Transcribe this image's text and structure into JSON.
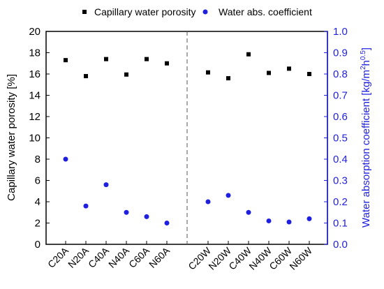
{
  "colors": {
    "left_axis": "#000000",
    "right_axis": "#1f1fe0",
    "series1_marker": "#000000",
    "series2_marker": "#1f1fe0"
  },
  "legend": {
    "placement": "top",
    "items": [
      {
        "label": "Capillary water porosity",
        "marker": "square",
        "color": "#000000"
      },
      {
        "label": "Water abs. coefficient",
        "marker": "circle",
        "color": "#1f1fe0"
      }
    ]
  },
  "chart_data": {
    "type": "scatter",
    "categories": [
      "C20A",
      "N20A",
      "C40A",
      "N40A",
      "C60A",
      "N60A",
      "C20W",
      "N20W",
      "C40W",
      "N40W",
      "C60W",
      "N60W"
    ],
    "divider_after_index": 5,
    "yaxis_left": {
      "label": "Capillary water porosity [%]",
      "range": [
        0,
        20
      ],
      "ticks": [
        "0",
        "2",
        "4",
        "6",
        "8",
        "10",
        "12",
        "14",
        "16",
        "18",
        "20"
      ]
    },
    "yaxis_right": {
      "label_main": "Water absorption coefficient [kg/m",
      "label_sup1": "2",
      "label_mid": "h",
      "label_sup2": "0.5",
      "label_end": "]",
      "range": [
        0,
        1.0
      ],
      "ticks": [
        "0.0",
        "0.1",
        "0.2",
        "0.3",
        "0.4",
        "0.5",
        "0.6",
        "0.7",
        "0.8",
        "0.9",
        "1.0"
      ]
    },
    "series": [
      {
        "name": "Capillary water porosity",
        "axis": "left",
        "values": [
          17.3,
          15.8,
          17.4,
          15.95,
          17.4,
          17.0,
          16.15,
          15.6,
          17.85,
          16.1,
          16.5,
          16.0
        ]
      },
      {
        "name": "Water abs. coefficient",
        "axis": "right",
        "values": [
          0.4,
          0.18,
          0.28,
          0.15,
          0.13,
          0.1,
          0.2,
          0.23,
          0.15,
          0.11,
          0.105,
          0.12
        ]
      }
    ],
    "grid": false
  }
}
